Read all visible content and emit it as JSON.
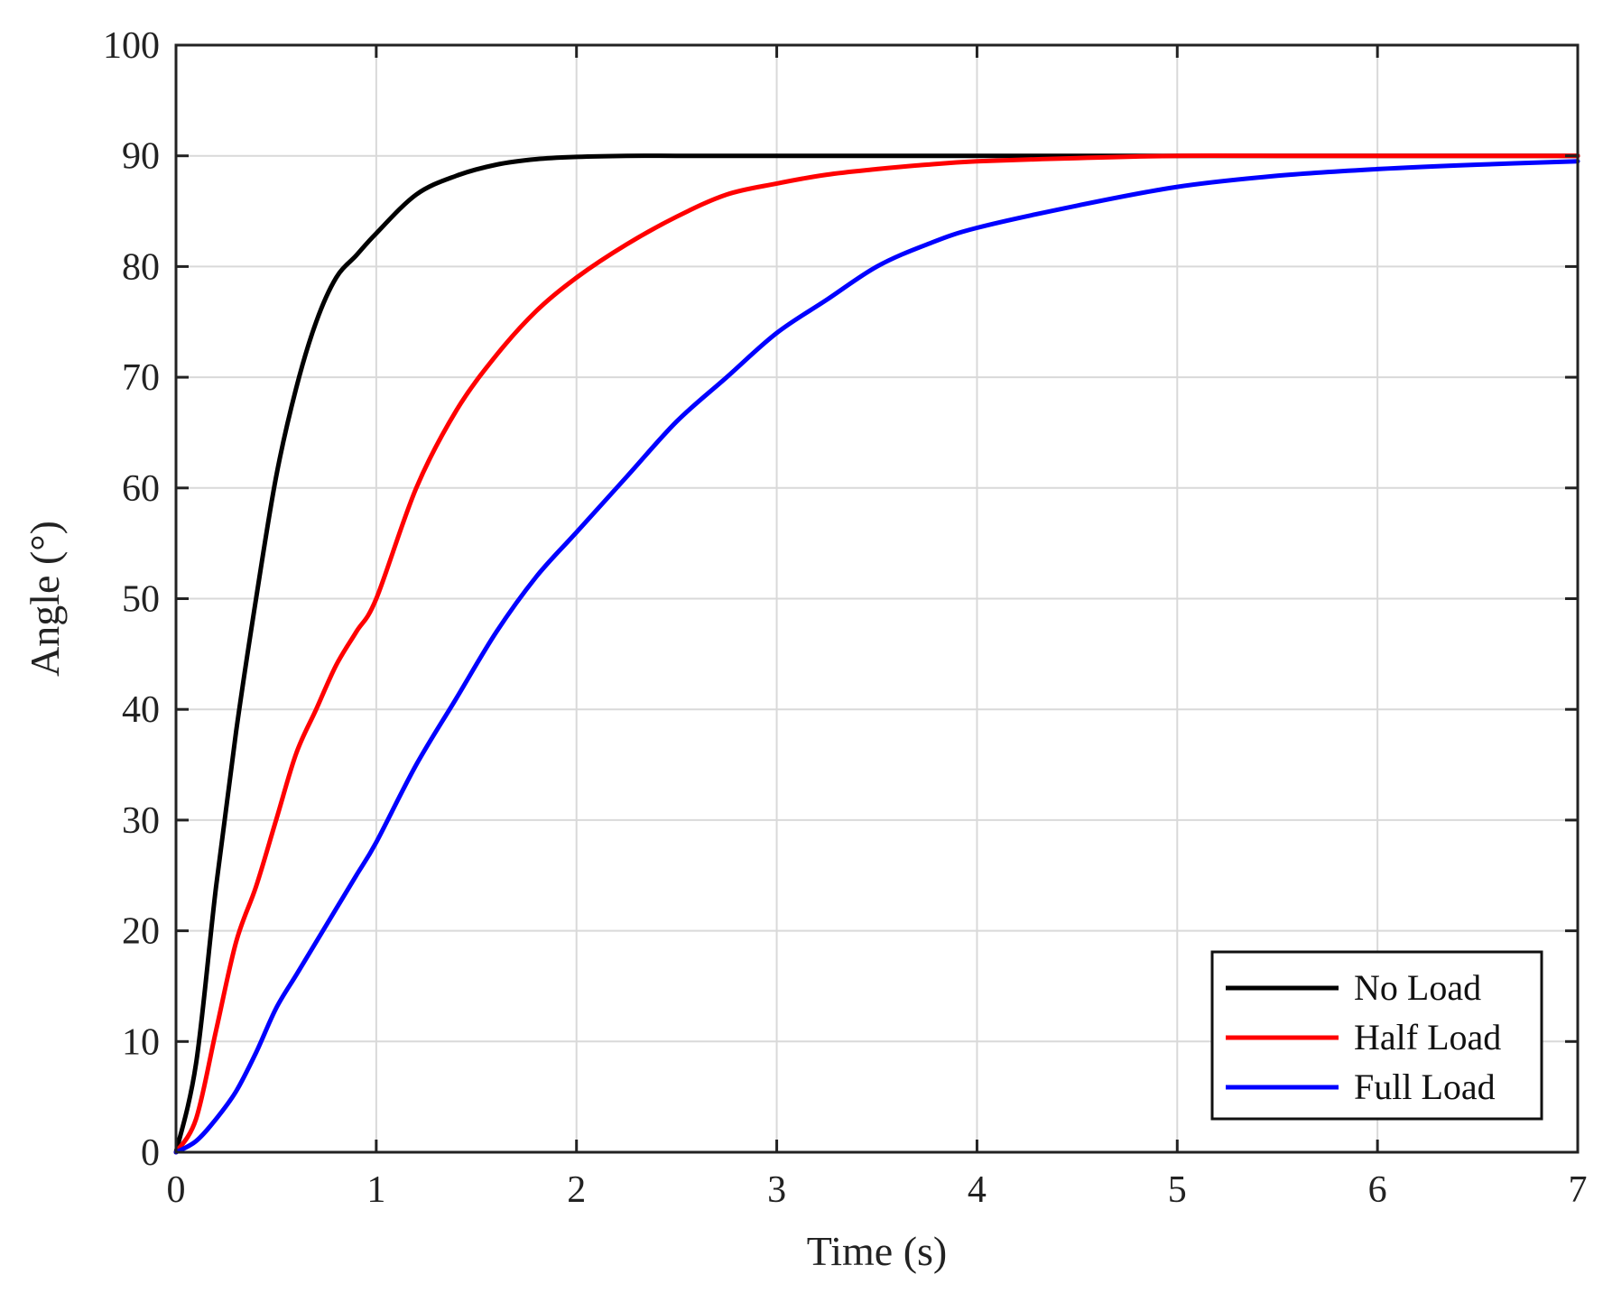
{
  "chart_data": {
    "type": "line",
    "title": "",
    "xlabel": "Time (s)",
    "ylabel": "Angle (°)",
    "xlim": [
      0,
      7
    ],
    "ylim": [
      0,
      100
    ],
    "xticks": [
      0,
      1,
      2,
      3,
      4,
      5,
      6,
      7
    ],
    "yticks": [
      0,
      10,
      20,
      30,
      40,
      50,
      60,
      70,
      80,
      90,
      100
    ],
    "xtick_labels": [
      "0",
      "1",
      "2",
      "3",
      "4",
      "5",
      "6",
      "7"
    ],
    "ytick_labels": [
      "0",
      "10",
      "20",
      "30",
      "40",
      "50",
      "60",
      "70",
      "80",
      "90",
      "100"
    ],
    "grid": true,
    "legend_position": "bottom-right",
    "x": [
      0,
      0.1,
      0.2,
      0.3,
      0.4,
      0.5,
      0.6,
      0.7,
      0.8,
      0.9,
      1.0,
      1.2,
      1.4,
      1.6,
      1.8,
      2.0,
      2.25,
      2.5,
      2.75,
      3.0,
      3.25,
      3.5,
      3.75,
      4.0,
      4.5,
      5.0,
      5.5,
      6.0,
      6.5,
      7.0
    ],
    "series": [
      {
        "name": "No Load",
        "color": "#000000",
        "values": [
          0,
          8,
          24,
          38,
          50,
          61,
          69,
          75,
          79,
          81,
          83,
          86.5,
          88.2,
          89.2,
          89.7,
          89.9,
          90,
          90,
          90,
          90,
          90,
          90,
          90,
          90,
          90,
          90,
          90,
          90,
          90,
          90
        ]
      },
      {
        "name": "Half Load",
        "color": "#ff0000",
        "values": [
          0,
          3,
          11,
          19,
          24,
          30,
          36,
          40,
          44,
          47,
          50,
          60,
          67,
          72,
          76,
          79,
          82,
          84.5,
          86.5,
          87.5,
          88.3,
          88.8,
          89.2,
          89.5,
          89.8,
          90,
          90,
          90,
          90,
          90
        ]
      },
      {
        "name": "Full Load",
        "color": "#0000ff",
        "values": [
          0,
          1,
          3,
          5.5,
          9,
          13,
          16,
          19,
          22,
          25,
          28,
          35,
          41,
          47,
          52,
          56,
          61,
          66,
          70,
          74,
          77,
          80,
          82,
          83.5,
          85.5,
          87.2,
          88.2,
          88.8,
          89.2,
          89.5
        ]
      }
    ]
  }
}
